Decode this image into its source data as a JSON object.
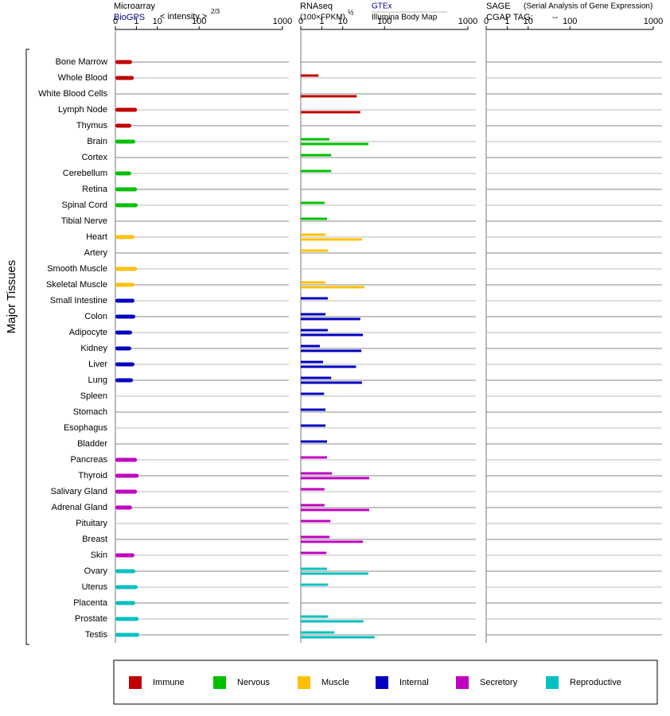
{
  "chart_data": {
    "type": "bar",
    "y_label": "Major Tissues",
    "xlim": [
      0,
      1000
    ],
    "xticks": [
      0,
      1,
      10,
      100,
      1000
    ],
    "panels": {
      "microarray": {
        "title": "Microarray",
        "source": "BioGPS",
        "unit": "< intensity >",
        "unit_power": "2/3"
      },
      "rnaseq": {
        "title": "RNAseq",
        "unit": "(100×FPKM)",
        "unit_power": "½",
        "series_top": "GTEx",
        "series_bottom": "Illumina Body Map"
      },
      "sage": {
        "title": "SAGE",
        "subtitle": "(Serial Analysis of Gene Expression)",
        "tag_label": "CGAP TAG:",
        "tag": "--"
      }
    },
    "groups": [
      {
        "name": "Immune",
        "color": "#c00000",
        "tissues": [
          "Bone Marrow",
          "Whole Blood",
          "White Blood Cells",
          "Lymph Node",
          "Thymus"
        ],
        "microarray": [
          0.46,
          0.64,
          null,
          1.1,
          0.39
        ],
        "gtex": [
          null,
          0.55,
          null,
          null,
          null
        ],
        "bodymap": [
          null,
          null,
          26,
          32,
          null
        ]
      },
      {
        "name": "Nervous",
        "color": "#00c000",
        "tissues": [
          "Brain",
          "Cortex",
          "Cerebellum",
          "Retina",
          "Spinal Cord",
          "Tibial Nerve"
        ],
        "microarray": [
          0.83,
          null,
          0.39,
          1.1,
          1.2,
          null
        ],
        "gtex": [
          2.8,
          3.4,
          3.4,
          null,
          1.5,
          2.1
        ],
        "bodymap": [
          49,
          null,
          null,
          null,
          null,
          null
        ]
      },
      {
        "name": "Muscle",
        "color": "#ffc000",
        "tissues": [
          "Heart",
          "Artery",
          "Smooth Muscle",
          "Skeletal Muscle"
        ],
        "microarray": [
          0.72,
          null,
          1.1,
          0.72
        ],
        "gtex": [
          1.7,
          2.3,
          null,
          1.7
        ],
        "bodymap": [
          35,
          null,
          null,
          40
        ]
      },
      {
        "name": "Internal",
        "color": "#0000c0",
        "tissues": [
          "Small Intestine",
          "Colon",
          "Adipocyte",
          "Kidney",
          "Liver",
          "Lung",
          "Spleen",
          "Stomach",
          "Esophagus",
          "Bladder"
        ],
        "microarray": [
          0.72,
          0.83,
          0.46,
          0.39,
          0.72,
          0.55,
          null,
          null,
          null,
          null
        ],
        "gtex": [
          2.3,
          1.7,
          2.3,
          0.72,
          1.2,
          3.4,
          1.4,
          1.7,
          1.7,
          2.1
        ],
        "bodymap": [
          null,
          32,
          37,
          34,
          25,
          35,
          null,
          null,
          null,
          null
        ]
      },
      {
        "name": "Secretory",
        "color": "#c000c0",
        "tissues": [
          "Pancreas",
          "Thyroid",
          "Salivary Gland",
          "Adrenal Gland",
          "Pituitary",
          "Breast",
          "Skin"
        ],
        "microarray": [
          1.1,
          1.4,
          1.1,
          0.46,
          null,
          null,
          0.72
        ],
        "gtex": [
          2.1,
          3.7,
          1.5,
          1.5,
          3.1,
          2.8,
          1.9
        ],
        "bodymap": [
          null,
          51,
          null,
          51,
          null,
          37,
          null
        ]
      },
      {
        "name": "Reproductive",
        "color": "#00c0c0",
        "tissues": [
          "Ovary",
          "Uterus",
          "Placenta",
          "Prostate",
          "Testis"
        ],
        "microarray": [
          0.83,
          1.2,
          0.83,
          1.4,
          1.5
        ],
        "gtex": [
          2.1,
          2.3,
          null,
          2.3,
          4.7
        ],
        "bodymap": [
          49,
          null,
          null,
          38,
          66
        ]
      }
    ]
  }
}
